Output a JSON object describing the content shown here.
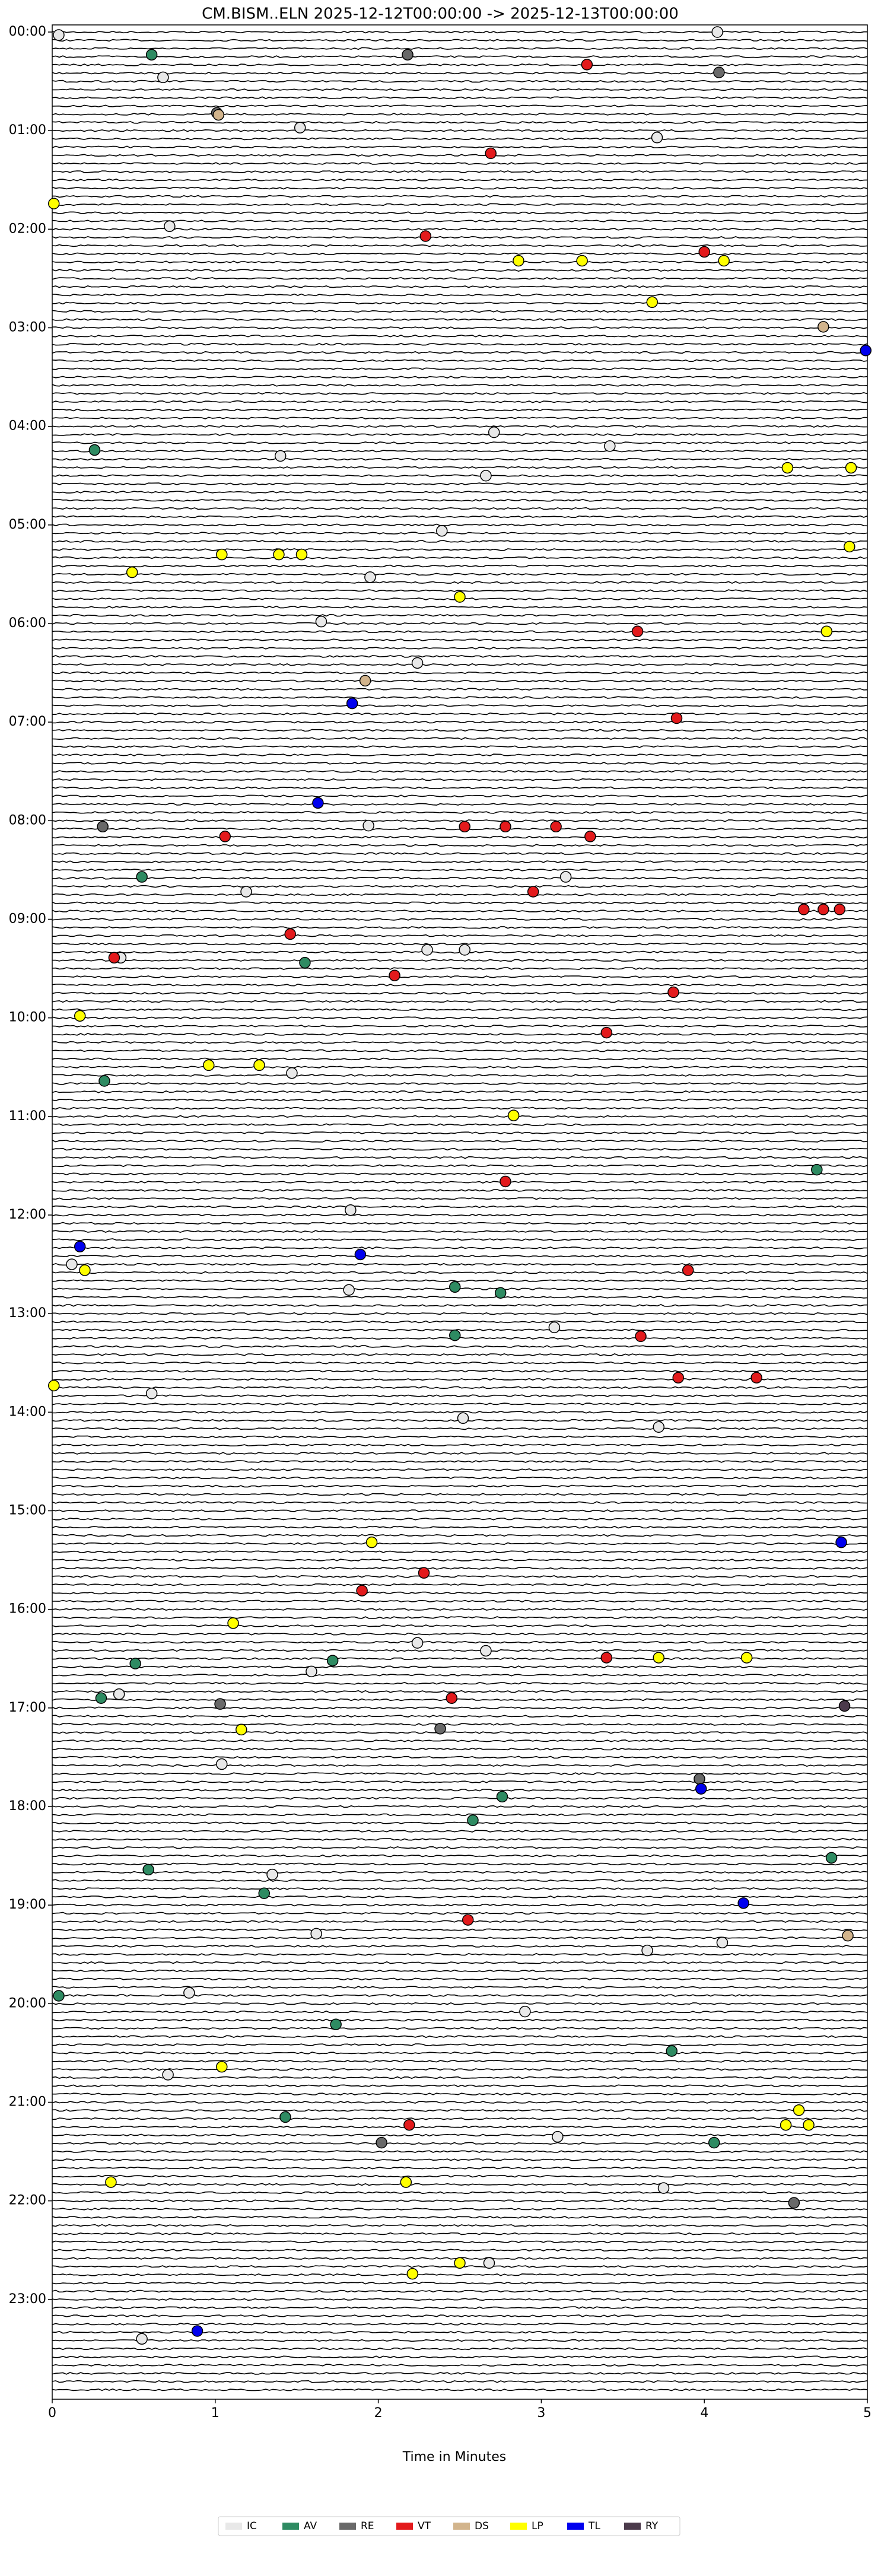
{
  "chart_data": {
    "type": "helicorder",
    "title": "CM.BISM..ELN  2025-12-12T00:00:00 -> 2025-12-13T00:00:00",
    "xlabel": "Time in Minutes",
    "xlim": [
      0,
      5
    ],
    "xticks": [
      0,
      1,
      2,
      3,
      4,
      5
    ],
    "ylim": [
      0,
      24
    ],
    "yticks": [
      {
        "value": 0,
        "label": "00:00"
      },
      {
        "value": 1,
        "label": "01:00"
      },
      {
        "value": 2,
        "label": "02:00"
      },
      {
        "value": 3,
        "label": "03:00"
      },
      {
        "value": 4,
        "label": "04:00"
      },
      {
        "value": 5,
        "label": "05:00"
      },
      {
        "value": 6,
        "label": "06:00"
      },
      {
        "value": 7,
        "label": "07:00"
      },
      {
        "value": 8,
        "label": "08:00"
      },
      {
        "value": 9,
        "label": "09:00"
      },
      {
        "value": 10,
        "label": "10:00"
      },
      {
        "value": 11,
        "label": "11:00"
      },
      {
        "value": 12,
        "label": "12:00"
      },
      {
        "value": 13,
        "label": "13:00"
      },
      {
        "value": 14,
        "label": "14:00"
      },
      {
        "value": 15,
        "label": "15:00"
      },
      {
        "value": 16,
        "label": "16:00"
      },
      {
        "value": 17,
        "label": "17:00"
      },
      {
        "value": 18,
        "label": "18:00"
      },
      {
        "value": 19,
        "label": "19:00"
      },
      {
        "value": 20,
        "label": "20:00"
      },
      {
        "value": 21,
        "label": "21:00"
      },
      {
        "value": 22,
        "label": "22:00"
      },
      {
        "value": 23,
        "label": "23:00"
      }
    ],
    "series": [
      {
        "name": "IC",
        "color": "#e8e8e8",
        "x": [
          0.04,
          4.08,
          0.68,
          1.52,
          3.71,
          0.72,
          2.71,
          3.42,
          1.4,
          2.66,
          2.39,
          1.95,
          1.65,
          2.24,
          1.94,
          1.19,
          2.3,
          2.53,
          3.15,
          0.42,
          1.47,
          1.83,
          0.12,
          1.82,
          3.08,
          0.61,
          3.72,
          2.52,
          2.24,
          2.66,
          0.41,
          1.59,
          1.04,
          1.35,
          1.62,
          3.65,
          4.11,
          0.84,
          2.9,
          0.71,
          3.1,
          3.75,
          2.68,
          0.55
        ],
        "values": [
          0.03,
          0.0,
          0.46,
          0.97,
          1.07,
          1.97,
          4.06,
          4.2,
          4.3,
          4.5,
          5.06,
          5.53,
          5.98,
          6.4,
          8.05,
          8.72,
          9.31,
          9.31,
          8.57,
          9.39,
          10.56,
          11.95,
          12.5,
          12.76,
          13.14,
          13.81,
          14.15,
          14.06,
          16.34,
          16.42,
          16.86,
          16.63,
          17.57,
          18.69,
          19.29,
          19.46,
          19.38,
          19.89,
          20.08,
          20.72,
          21.35,
          21.87,
          22.63,
          23.4
        ]
      },
      {
        "name": "AV",
        "color": "#2e8b62",
        "x": [
          0.61,
          0.26,
          0.55,
          1.55,
          0.32,
          4.69,
          2.47,
          2.75,
          2.47,
          1.72,
          0.51,
          0.3,
          2.76,
          2.58,
          0.59,
          1.3,
          4.78,
          0.04,
          1.74,
          3.8,
          1.43,
          4.06
        ],
        "values": [
          0.23,
          4.24,
          8.57,
          9.44,
          10.64,
          11.54,
          12.73,
          12.79,
          13.22,
          16.52,
          16.55,
          16.9,
          17.9,
          18.14,
          18.64,
          18.88,
          18.52,
          19.92,
          20.21,
          20.48,
          21.15,
          21.41
        ]
      },
      {
        "name": "RE",
        "color": "#696969",
        "x": [
          2.18,
          1.01,
          4.09,
          0.31,
          1.03,
          2.38,
          3.97,
          2.02,
          4.55
        ],
        "values": [
          0.23,
          0.82,
          0.41,
          8.06,
          16.96,
          17.21,
          17.72,
          21.41,
          22.02
        ]
      },
      {
        "name": "VT",
        "color": "#e31a1c",
        "x": [
          3.28,
          2.69,
          2.29,
          4.0,
          3.59,
          3.83,
          1.06,
          2.53,
          2.78,
          3.09,
          3.3,
          2.95,
          1.46,
          0.38,
          4.61,
          4.73,
          4.83,
          3.81,
          3.4,
          2.1,
          2.78,
          3.9,
          3.61,
          3.84,
          4.32,
          2.28,
          1.9,
          2.45,
          3.4,
          2.55,
          2.19
        ],
        "values": [
          0.33,
          1.23,
          2.07,
          2.23,
          6.08,
          6.96,
          8.16,
          8.06,
          8.06,
          8.06,
          8.16,
          8.72,
          9.15,
          9.39,
          8.9,
          8.9,
          8.9,
          9.74,
          10.15,
          9.57,
          11.66,
          12.56,
          13.23,
          13.65,
          13.65,
          15.63,
          15.81,
          16.9,
          16.49,
          19.15,
          21.23
        ]
      },
      {
        "name": "DS",
        "color": "#d2b48c",
        "x": [
          1.02,
          4.73,
          1.92,
          4.88
        ],
        "values": [
          0.84,
          2.99,
          6.58,
          19.31
        ]
      },
      {
        "name": "LP",
        "color": "#ffff00",
        "x": [
          0.01,
          2.86,
          3.25,
          4.12,
          3.68,
          4.51,
          4.9,
          4.89,
          1.04,
          1.39,
          1.53,
          0.49,
          2.5,
          4.75,
          0.17,
          0.96,
          1.27,
          2.83,
          0.2,
          0.01,
          1.96,
          1.11,
          3.72,
          4.26,
          1.16,
          1.04,
          4.58,
          4.5,
          4.64,
          0.36,
          2.17,
          2.5,
          2.21
        ],
        "values": [
          1.74,
          2.32,
          2.32,
          2.32,
          2.74,
          4.42,
          4.42,
          5.22,
          5.3,
          5.3,
          5.3,
          5.48,
          5.73,
          6.08,
          9.98,
          10.48,
          10.48,
          10.99,
          12.56,
          13.73,
          15.32,
          16.14,
          16.49,
          16.49,
          17.22,
          20.64,
          21.08,
          21.23,
          21.23,
          21.81,
          21.81,
          22.63,
          22.74
        ]
      },
      {
        "name": "TL",
        "color": "#0000ee",
        "x": [
          4.99,
          1.84,
          1.63,
          0.17,
          1.89,
          4.84,
          3.98,
          4.24,
          0.89
        ],
        "values": [
          3.23,
          6.81,
          7.82,
          12.32,
          12.4,
          15.32,
          17.82,
          18.98,
          23.32
        ]
      },
      {
        "name": "RY",
        "color": "#4b3a4b",
        "x": [
          4.86
        ],
        "values": [
          16.98
        ]
      }
    ]
  }
}
